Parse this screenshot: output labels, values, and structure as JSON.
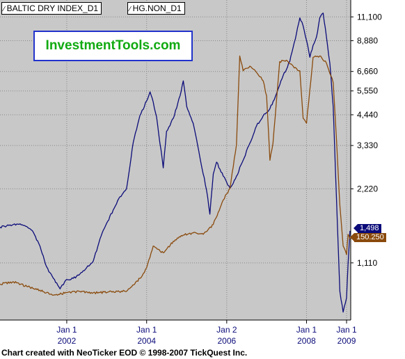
{
  "legend": {
    "glyph": "∕",
    "series_1": "BALTIC DRY INDEX_D1",
    "series_2": "HG.NON_D1"
  },
  "watermark": "InvestmentTools.com",
  "credit": "Chart created with NeoTicker EOD © 1998-2007 TickQuest Inc.",
  "last_values": {
    "bdi": "1,498",
    "hg": "150.250"
  },
  "colors": {
    "background": "#c8c8c8",
    "grid": "#888888",
    "bdi_line": "#0b0b7a",
    "hg_line": "#8a4a0c",
    "axis_text": "#000000",
    "x_label_color": "#0b0b7a",
    "watermark_border": "#2233cc",
    "watermark_text": "#11aa11"
  },
  "chart_data": {
    "type": "line",
    "title": "",
    "xlabel": "",
    "ylabel": "",
    "grid": true,
    "legend_placement": "top-left",
    "x_ticks": [
      {
        "line1": "Jan 1",
        "line2": "2002",
        "date": "2002-01-01"
      },
      {
        "line1": "Jan 1",
        "line2": "2004",
        "date": "2004-01-01"
      },
      {
        "line1": "Jan 2",
        "line2": "2006",
        "date": "2006-01-02"
      },
      {
        "line1": "Jan 1",
        "line2": "2008",
        "date": "2008-01-01"
      },
      {
        "line1": "Jan 1",
        "line2": "2009",
        "date": "2009-01-01"
      }
    ],
    "y_ticks": [
      "11,100",
      "8,880",
      "6,660",
      "5,550",
      "4,440",
      "3,330",
      "2,220",
      "1,110"
    ],
    "y_tick_values": [
      11100,
      8880,
      6660,
      5550,
      4440,
      3330,
      2220,
      1110
    ],
    "y_scale": "log",
    "ylim": [
      650,
      13000
    ],
    "series": [
      {
        "name": "BALTIC DRY INDEX_D1",
        "color": "#0b0b7a",
        "points": [
          [
            "2000-05-01",
            1550
          ],
          [
            "2000-07-01",
            1570
          ],
          [
            "2000-09-01",
            1590
          ],
          [
            "2000-11-01",
            1600
          ],
          [
            "2001-01-01",
            1560
          ],
          [
            "2001-03-01",
            1480
          ],
          [
            "2001-05-01",
            1300
          ],
          [
            "2001-07-01",
            1070
          ],
          [
            "2001-09-01",
            960
          ],
          [
            "2001-11-01",
            870
          ],
          [
            "2002-01-01",
            950
          ],
          [
            "2002-03-01",
            960
          ],
          [
            "2002-05-01",
            1000
          ],
          [
            "2002-07-01",
            1060
          ],
          [
            "2002-09-01",
            1130
          ],
          [
            "2002-11-01",
            1390
          ],
          [
            "2003-01-01",
            1610
          ],
          [
            "2003-03-01",
            1820
          ],
          [
            "2003-05-01",
            2060
          ],
          [
            "2003-07-01",
            2220
          ],
          [
            "2003-09-01",
            3430
          ],
          [
            "2003-11-01",
            4410
          ],
          [
            "2004-01-01",
            5050
          ],
          [
            "2004-02-01",
            5500
          ],
          [
            "2004-03-01",
            5000
          ],
          [
            "2004-04-01",
            4350
          ],
          [
            "2004-06-01",
            2700
          ],
          [
            "2004-07-01",
            3800
          ],
          [
            "2004-09-01",
            4300
          ],
          [
            "2004-11-01",
            5300
          ],
          [
            "2004-12-01",
            6100
          ],
          [
            "2005-01-01",
            4800
          ],
          [
            "2005-03-01",
            4100
          ],
          [
            "2005-05-01",
            3000
          ],
          [
            "2005-07-01",
            2200
          ],
          [
            "2005-08-01",
            1750
          ],
          [
            "2005-09-01",
            2550
          ],
          [
            "2005-10-01",
            2850
          ],
          [
            "2005-12-01",
            2500
          ],
          [
            "2006-02-01",
            2230
          ],
          [
            "2006-04-01",
            2500
          ],
          [
            "2006-06-01",
            2900
          ],
          [
            "2006-08-01",
            3400
          ],
          [
            "2006-10-01",
            4000
          ],
          [
            "2006-12-01",
            4400
          ],
          [
            "2007-02-01",
            4700
          ],
          [
            "2007-04-01",
            5400
          ],
          [
            "2007-06-01",
            6400
          ],
          [
            "2007-08-01",
            7300
          ],
          [
            "2007-10-01",
            9500
          ],
          [
            "2007-11-01",
            11000
          ],
          [
            "2007-12-01",
            10200
          ],
          [
            "2008-01-01",
            8900
          ],
          [
            "2008-02-01",
            7600
          ],
          [
            "2008-03-01",
            8500
          ],
          [
            "2008-04-01",
            9200
          ],
          [
            "2008-05-01",
            11000
          ],
          [
            "2008-06-01",
            11500
          ],
          [
            "2008-07-01",
            9200
          ],
          [
            "2008-08-01",
            7200
          ],
          [
            "2008-09-01",
            4800
          ],
          [
            "2008-10-01",
            2000
          ],
          [
            "2008-11-01",
            850
          ],
          [
            "2008-12-01",
            700
          ],
          [
            "2009-01-01",
            800
          ],
          [
            "2009-01-15",
            1100
          ],
          [
            "2009-02-01",
            1498
          ]
        ]
      },
      {
        "name": "HG.NON_D1",
        "color": "#8a4a0c",
        "points": [
          [
            "2000-05-01",
            910
          ],
          [
            "2000-09-01",
            930
          ],
          [
            "2001-01-01",
            890
          ],
          [
            "2001-05-01",
            860
          ],
          [
            "2001-09-01",
            820
          ],
          [
            "2002-01-01",
            840
          ],
          [
            "2002-05-01",
            850
          ],
          [
            "2002-09-01",
            840
          ],
          [
            "2002-11-01",
            840
          ],
          [
            "2003-03-01",
            850
          ],
          [
            "2003-07-01",
            850
          ],
          [
            "2003-11-01",
            960
          ],
          [
            "2004-01-01",
            1060
          ],
          [
            "2004-03-01",
            1300
          ],
          [
            "2004-06-01",
            1220
          ],
          [
            "2004-09-01",
            1360
          ],
          [
            "2004-12-01",
            1440
          ],
          [
            "2005-03-01",
            1470
          ],
          [
            "2005-06-01",
            1450
          ],
          [
            "2005-09-01",
            1590
          ],
          [
            "2005-12-01",
            2000
          ],
          [
            "2006-02-01",
            2230
          ],
          [
            "2006-04-01",
            3350
          ],
          [
            "2006-05-01",
            7700
          ],
          [
            "2006-06-01",
            6700
          ],
          [
            "2006-08-01",
            7000
          ],
          [
            "2006-10-01",
            6600
          ],
          [
            "2006-12-01",
            6100
          ],
          [
            "2007-01-01",
            5300
          ],
          [
            "2007-02-01",
            2900
          ],
          [
            "2007-03-01",
            3400
          ],
          [
            "2007-05-01",
            7300
          ],
          [
            "2007-07-01",
            7400
          ],
          [
            "2007-09-01",
            7000
          ],
          [
            "2007-11-01",
            6700
          ],
          [
            "2007-12-01",
            4300
          ],
          [
            "2008-01-01",
            4100
          ],
          [
            "2008-03-01",
            7600
          ],
          [
            "2008-05-01",
            7700
          ],
          [
            "2008-07-01",
            7200
          ],
          [
            "2008-09-01",
            6000
          ],
          [
            "2008-10-01",
            3500
          ],
          [
            "2008-11-01",
            1900
          ],
          [
            "2008-12-01",
            1300
          ],
          [
            "2009-01-01",
            1200
          ],
          [
            "2009-01-15",
            1450
          ],
          [
            "2009-02-01",
            1380
          ]
        ]
      }
    ]
  }
}
